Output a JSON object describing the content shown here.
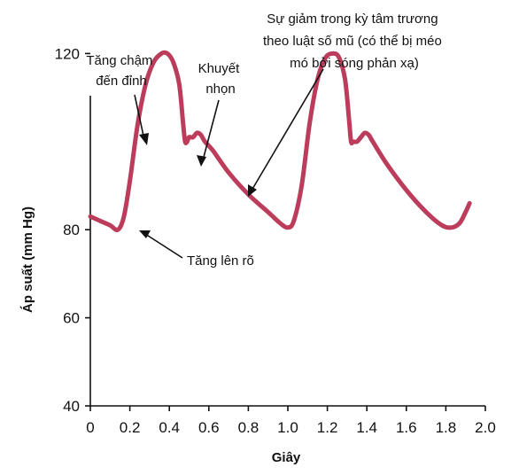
{
  "chart_data": {
    "type": "line",
    "xlabel": "Giây",
    "ylabel": "Áp suất (mm Hg)",
    "xlim": [
      0,
      2.0
    ],
    "ylim": [
      40,
      135
    ],
    "x_ticks": [
      "0",
      "0.2",
      "0.4",
      "0.6",
      "0.8",
      "1.0",
      "1.2",
      "1.4",
      "1.6",
      "1.8",
      "2.0"
    ],
    "y_ticks": [
      "40",
      "60",
      "80",
      "120"
    ],
    "series": [
      {
        "color": "#bb3d5b",
        "x": [
          0.0,
          0.05,
          0.1,
          0.14,
          0.17,
          0.2,
          0.24,
          0.28,
          0.32,
          0.36,
          0.39,
          0.42,
          0.45,
          0.47,
          0.48,
          0.49,
          0.5,
          0.52,
          0.54,
          0.56,
          0.58,
          0.62,
          0.7,
          0.8,
          0.9,
          0.96,
          1.0,
          1.03,
          1.07,
          1.11,
          1.15,
          1.19,
          1.23,
          1.26,
          1.29,
          1.31,
          1.32,
          1.33,
          1.35,
          1.37,
          1.39,
          1.41,
          1.43,
          1.5,
          1.6,
          1.7,
          1.78,
          1.83,
          1.87,
          1.9,
          1.92
        ],
        "y": [
          83,
          82,
          81,
          80,
          83,
          91,
          104,
          113,
          118,
          120,
          120,
          118,
          113,
          104,
          100,
          100,
          101,
          101,
          102,
          101.5,
          100,
          98,
          93,
          88,
          84,
          81.5,
          80.5,
          82,
          90,
          104,
          114,
          119,
          120,
          119,
          114,
          105,
          100,
          100,
          100,
          101,
          102,
          101.5,
          100,
          95,
          89,
          84,
          81,
          80.5,
          81.5,
          84,
          86
        ]
      }
    ],
    "annotations": [
      {
        "id": "slow-rise",
        "lines": [
          "Tăng chậm",
          "đến đỉnh"
        ]
      },
      {
        "id": "notch",
        "lines": [
          "Khuyết",
          "nhọn"
        ]
      },
      {
        "id": "decline",
        "lines": [
          "Sự giảm trong kỳ tâm trương",
          "theo luật số mũ (có thể bị méo",
          "mó bởi sóng phản xạ)"
        ]
      },
      {
        "id": "sharp-rise",
        "lines": [
          "Tăng lên rõ"
        ]
      }
    ],
    "grid": false,
    "legend": "none"
  }
}
